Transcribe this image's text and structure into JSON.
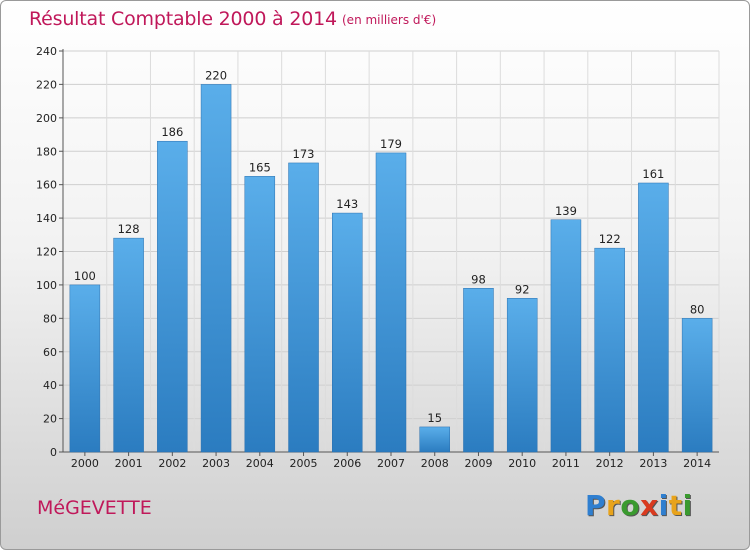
{
  "header": {
    "title": "Résultat Comptable 2000 à 2014",
    "unit": "(en milliers d'€)"
  },
  "footer": {
    "commune": "MéGEVETTE",
    "logo_letters": [
      {
        "char": "P",
        "color": "#2f7fd0"
      },
      {
        "char": "r",
        "color": "#e8a31b"
      },
      {
        "char": "o",
        "color": "#3a9a2f"
      },
      {
        "char": "x",
        "color": "#d93a1f"
      },
      {
        "char": "i",
        "color": "#2f7fd0"
      },
      {
        "char": "t",
        "color": "#e8a31b"
      },
      {
        "char": "i",
        "color": "#3a9a2f"
      }
    ]
  },
  "chart_data": {
    "type": "bar",
    "title": "Résultat Comptable 2000 à 2014",
    "xlabel": "",
    "ylabel": "",
    "ylim": [
      0,
      240
    ],
    "ytick_step": 20,
    "grid": true,
    "categories": [
      "2000",
      "2001",
      "2002",
      "2003",
      "2004",
      "2005",
      "2006",
      "2007",
      "2008",
      "2009",
      "2010",
      "2011",
      "2012",
      "2013",
      "2014"
    ],
    "values": [
      100,
      128,
      186,
      220,
      165,
      173,
      143,
      179,
      15,
      98,
      92,
      139,
      122,
      161,
      80
    ],
    "bar_color_top": "#5aaeea",
    "bar_color_bottom": "#2b7cc0",
    "title_color": "#c0185a"
  }
}
